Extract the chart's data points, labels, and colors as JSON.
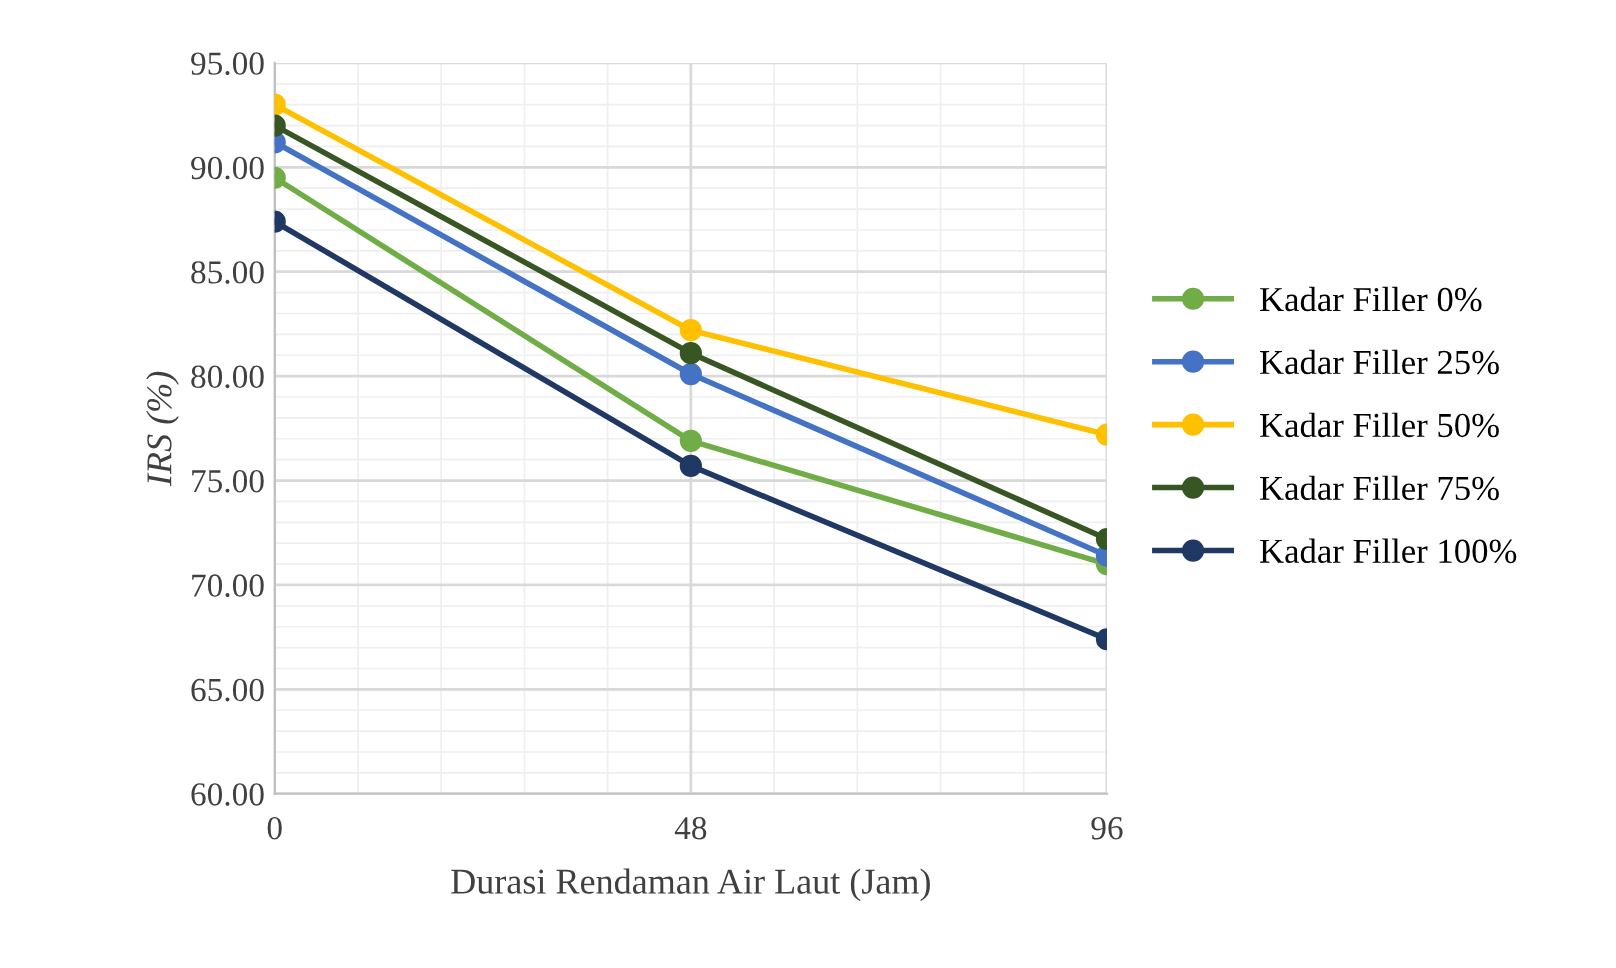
{
  "chart_data": {
    "type": "line",
    "xlabel": "Durasi Rendaman Air Laut (Jam)",
    "ylabel": "IRS (%)",
    "x": [
      0,
      48,
      96
    ],
    "series": [
      {
        "name": "Kadar Filler 0%",
        "color": "#70ad47",
        "values": [
          89.5,
          76.9,
          71.0
        ]
      },
      {
        "name": "Kadar Filler 25%",
        "color": "#4472c4",
        "values": [
          91.2,
          80.1,
          71.4
        ]
      },
      {
        "name": "Kadar Filler 50%",
        "color": "#ffc000",
        "values": [
          93.0,
          82.2,
          77.2
        ]
      },
      {
        "name": "Kadar Filler 75%",
        "color": "#375623",
        "values": [
          92.0,
          81.1,
          72.2
        ]
      },
      {
        "name": "Kadar Filler 100%",
        "color": "#203864",
        "values": [
          87.4,
          75.7,
          67.4
        ]
      }
    ],
    "xlim": [
      0,
      96
    ],
    "xticks": [
      0,
      48,
      96
    ],
    "ylim": [
      60,
      95
    ],
    "yticks": [
      {
        "value": 60,
        "label": "60.00"
      },
      {
        "value": 65,
        "label": "65.00"
      },
      {
        "value": 70,
        "label": "70.00"
      },
      {
        "value": 75,
        "label": "75.00"
      },
      {
        "value": 80,
        "label": "80.00"
      },
      {
        "value": 85,
        "label": "85.00"
      },
      {
        "value": 90,
        "label": "90.00"
      },
      {
        "value": 95,
        "label": "95.00"
      }
    ],
    "grid": true,
    "legend": "right",
    "marker": "circle",
    "line_style": "solid"
  }
}
